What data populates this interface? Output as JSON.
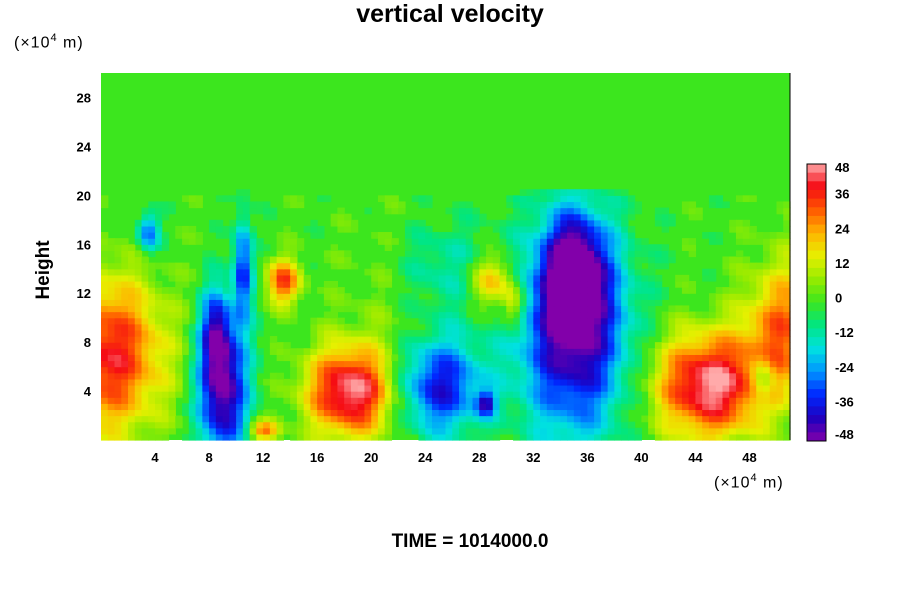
{
  "chart_data": {
    "type": "heatmap",
    "title": "vertical velocity",
    "ylabel": "Height",
    "xunit_prefix": "(×10",
    "xunit_exp": "4",
    "xunit_suffix": " m)",
    "yunit_prefix": "(×10",
    "yunit_exp": "4",
    "yunit_suffix": " m)",
    "footer": "TIME = 1014000.0",
    "xlim": [
      0,
      51
    ],
    "ylim": [
      0,
      30
    ],
    "xticks": [
      4,
      8,
      12,
      16,
      20,
      24,
      28,
      32,
      36,
      40,
      44,
      48
    ],
    "yticks": [
      4,
      8,
      12,
      16,
      20,
      24,
      28
    ],
    "colorbar": {
      "range": [
        -48,
        48
      ],
      "ticks": [
        48,
        36,
        24,
        12,
        0,
        -12,
        -24,
        -36,
        -48
      ]
    },
    "features": [
      {
        "x": 0.5,
        "y": 7,
        "sx": 3,
        "sy": 4.5,
        "v": 40
      },
      {
        "x": 13.5,
        "y": 13,
        "sx": 0.9,
        "sy": 1.3,
        "v": 34
      },
      {
        "x": 12,
        "y": 0.8,
        "sx": 0.8,
        "sy": 0.6,
        "v": 30
      },
      {
        "x": 18.5,
        "y": 4,
        "sx": 2.3,
        "sy": 2.6,
        "v": 48
      },
      {
        "x": 29,
        "y": 13,
        "sx": 1.2,
        "sy": 1.5,
        "v": 26
      },
      {
        "x": 30.5,
        "y": 11,
        "sx": 0.6,
        "sy": 1.2,
        "v": 22
      },
      {
        "x": 45,
        "y": 4.5,
        "sx": 2.8,
        "sy": 3,
        "v": 48
      },
      {
        "x": 50.5,
        "y": 9,
        "sx": 2,
        "sy": 4,
        "v": 30
      },
      {
        "x": 9,
        "y": 4,
        "sx": 1.3,
        "sy": 4,
        "v": -48
      },
      {
        "x": 8.5,
        "y": 9,
        "sx": 0.8,
        "sy": 2.5,
        "v": -30
      },
      {
        "x": 10.5,
        "y": 14,
        "sx": 0.5,
        "sy": 3,
        "v": -34
      },
      {
        "x": 3.5,
        "y": 17,
        "sx": 0.6,
        "sy": 1.2,
        "v": -30
      },
      {
        "x": 25,
        "y": 4.5,
        "sx": 2.3,
        "sy": 2.8,
        "v": -38
      },
      {
        "x": 28.5,
        "y": 3,
        "sx": 0.5,
        "sy": 0.7,
        "v": -32
      },
      {
        "x": 35,
        "y": 9,
        "sx": 2.8,
        "sy": 6,
        "v": -48
      },
      {
        "x": 35,
        "y": 14,
        "sx": 1.5,
        "sy": 3,
        "v": -40
      },
      {
        "x": 49,
        "y": 5,
        "sx": 0.6,
        "sy": 1.3,
        "v": -20
      },
      {
        "x": 25,
        "y": 14,
        "sx": 2.5,
        "sy": 3,
        "v": -14
      },
      {
        "x": 22,
        "y": 12,
        "sx": 3,
        "sy": 5,
        "v": 6
      }
    ]
  }
}
